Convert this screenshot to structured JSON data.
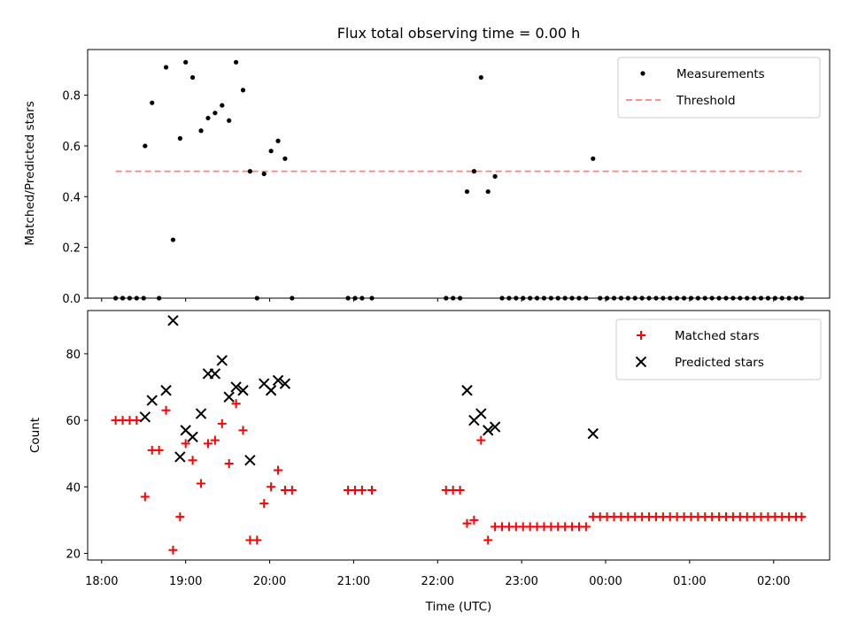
{
  "title": "Flux total observing time = 0.00 h",
  "chart_data": [
    {
      "type": "scatter",
      "panel": "top",
      "ylabel": "Matched/Predicted stars",
      "ylim": [
        0,
        0.98
      ],
      "yticks": [
        0,
        0.2,
        0.4,
        0.6,
        0.8
      ],
      "ytick_labels": [
        "0.0",
        "0.2",
        "0.4",
        "0.6",
        "0.8"
      ],
      "legend_placement": "upper right",
      "threshold": {
        "name": "Threshold",
        "value": 0.5,
        "x_range": [
          "18:10",
          "02:20"
        ],
        "color": "#ff8080"
      },
      "series": [
        {
          "name": "Measurements",
          "color": "#000000",
          "marker": "dot",
          "points": [
            [
              "18:10",
              0
            ],
            [
              "18:15",
              0
            ],
            [
              "18:20",
              0
            ],
            [
              "18:25",
              0
            ],
            [
              "18:30",
              0
            ],
            [
              "18:31",
              0.6
            ],
            [
              "18:36",
              0.77
            ],
            [
              "18:41",
              0
            ],
            [
              "18:46",
              0.91
            ],
            [
              "18:51",
              0.23
            ],
            [
              "18:56",
              0.63
            ],
            [
              "19:00",
              0.93
            ],
            [
              "19:05",
              0.87
            ],
            [
              "19:11",
              0.66
            ],
            [
              "19:16",
              0.71
            ],
            [
              "19:21",
              0.73
            ],
            [
              "19:26",
              0.76
            ],
            [
              "19:31",
              0.7
            ],
            [
              "19:36",
              0.93
            ],
            [
              "19:41",
              0.82
            ],
            [
              "19:46",
              0.5
            ],
            [
              "19:51",
              0
            ],
            [
              "19:56",
              0.49
            ],
            [
              "20:01",
              0.58
            ],
            [
              "20:06",
              0.62
            ],
            [
              "20:11",
              0.55
            ],
            [
              "20:16",
              0
            ],
            [
              "20:56",
              0
            ],
            [
              "21:01",
              0
            ],
            [
              "21:06",
              0
            ],
            [
              "21:13",
              0
            ],
            [
              "22:06",
              0
            ],
            [
              "22:11",
              0
            ],
            [
              "22:16",
              0
            ],
            [
              "22:21",
              0.42
            ],
            [
              "22:26",
              0.5
            ],
            [
              "22:31",
              0.87
            ],
            [
              "22:36",
              0.42
            ],
            [
              "22:41",
              0.48
            ],
            [
              "22:46",
              0
            ],
            [
              "22:51",
              0
            ],
            [
              "22:56",
              0
            ],
            [
              "23:01",
              0
            ],
            [
              "23:06",
              0
            ],
            [
              "23:11",
              0
            ],
            [
              "23:16",
              0
            ],
            [
              "23:21",
              0
            ],
            [
              "23:26",
              0
            ],
            [
              "23:31",
              0
            ],
            [
              "23:36",
              0
            ],
            [
              "23:41",
              0
            ],
            [
              "23:46",
              0
            ],
            [
              "23:51",
              0.55
            ],
            [
              "23:56",
              0
            ],
            [
              "00:01",
              0
            ],
            [
              "00:06",
              0
            ],
            [
              "00:11",
              0
            ],
            [
              "00:16",
              0
            ],
            [
              "00:21",
              0
            ],
            [
              "00:26",
              0
            ],
            [
              "00:31",
              0
            ],
            [
              "00:36",
              0
            ],
            [
              "00:41",
              0
            ],
            [
              "00:46",
              0
            ],
            [
              "00:51",
              0
            ],
            [
              "00:56",
              0
            ],
            [
              "01:01",
              0
            ],
            [
              "01:06",
              0
            ],
            [
              "01:11",
              0
            ],
            [
              "01:16",
              0
            ],
            [
              "01:21",
              0
            ],
            [
              "01:26",
              0
            ],
            [
              "01:31",
              0
            ],
            [
              "01:36",
              0
            ],
            [
              "01:41",
              0
            ],
            [
              "01:46",
              0
            ],
            [
              "01:51",
              0
            ],
            [
              "01:56",
              0
            ],
            [
              "02:01",
              0
            ],
            [
              "02:06",
              0
            ],
            [
              "02:11",
              0
            ],
            [
              "02:16",
              0
            ],
            [
              "02:20",
              0
            ]
          ]
        }
      ]
    },
    {
      "type": "scatter",
      "panel": "bottom",
      "xlabel": "Time (UTC)",
      "ylabel": "Count",
      "ylim": [
        18,
        93
      ],
      "yticks": [
        20,
        40,
        60,
        80
      ],
      "ytick_labels": [
        "20",
        "40",
        "60",
        "80"
      ],
      "xlim": [
        "17:50",
        "02:40"
      ],
      "xticks": [
        "18:00",
        "19:00",
        "20:00",
        "21:00",
        "22:00",
        "23:00",
        "00:00",
        "01:00",
        "02:00"
      ],
      "legend_placement": "upper right",
      "series": [
        {
          "name": "Matched stars",
          "color": "#ff0000",
          "marker": "plus",
          "points": [
            [
              "18:10",
              60
            ],
            [
              "18:15",
              60
            ],
            [
              "18:20",
              60
            ],
            [
              "18:25",
              60
            ],
            [
              "18:31",
              37
            ],
            [
              "18:36",
              51
            ],
            [
              "18:41",
              51
            ],
            [
              "18:46",
              63
            ],
            [
              "18:51",
              21
            ],
            [
              "18:56",
              31
            ],
            [
              "19:00",
              53
            ],
            [
              "19:05",
              48
            ],
            [
              "19:11",
              41
            ],
            [
              "19:16",
              53
            ],
            [
              "19:21",
              54
            ],
            [
              "19:26",
              59
            ],
            [
              "19:31",
              47
            ],
            [
              "19:36",
              65
            ],
            [
              "19:41",
              57
            ],
            [
              "19:46",
              24
            ],
            [
              "19:51",
              24
            ],
            [
              "19:56",
              35
            ],
            [
              "20:01",
              40
            ],
            [
              "20:06",
              45
            ],
            [
              "20:11",
              39
            ],
            [
              "20:16",
              39
            ],
            [
              "20:56",
              39
            ],
            [
              "21:01",
              39
            ],
            [
              "21:06",
              39
            ],
            [
              "21:13",
              39
            ],
            [
              "22:06",
              39
            ],
            [
              "22:11",
              39
            ],
            [
              "22:16",
              39
            ],
            [
              "22:21",
              29
            ],
            [
              "22:26",
              30
            ],
            [
              "22:31",
              54
            ],
            [
              "22:36",
              24
            ],
            [
              "22:41",
              28
            ],
            [
              "22:46",
              28
            ],
            [
              "22:51",
              28
            ],
            [
              "22:56",
              28
            ],
            [
              "23:01",
              28
            ],
            [
              "23:06",
              28
            ],
            [
              "23:11",
              28
            ],
            [
              "23:16",
              28
            ],
            [
              "23:21",
              28
            ],
            [
              "23:26",
              28
            ],
            [
              "23:31",
              28
            ],
            [
              "23:36",
              28
            ],
            [
              "23:41",
              28
            ],
            [
              "23:46",
              28
            ],
            [
              "23:51",
              31
            ],
            [
              "23:56",
              31
            ],
            [
              "00:01",
              31
            ],
            [
              "00:06",
              31
            ],
            [
              "00:11",
              31
            ],
            [
              "00:16",
              31
            ],
            [
              "00:21",
              31
            ],
            [
              "00:26",
              31
            ],
            [
              "00:31",
              31
            ],
            [
              "00:36",
              31
            ],
            [
              "00:41",
              31
            ],
            [
              "00:46",
              31
            ],
            [
              "00:51",
              31
            ],
            [
              "00:56",
              31
            ],
            [
              "01:01",
              31
            ],
            [
              "01:06",
              31
            ],
            [
              "01:11",
              31
            ],
            [
              "01:16",
              31
            ],
            [
              "01:21",
              31
            ],
            [
              "01:26",
              31
            ],
            [
              "01:31",
              31
            ],
            [
              "01:36",
              31
            ],
            [
              "01:41",
              31
            ],
            [
              "01:46",
              31
            ],
            [
              "01:51",
              31
            ],
            [
              "01:56",
              31
            ],
            [
              "02:01",
              31
            ],
            [
              "02:06",
              31
            ],
            [
              "02:11",
              31
            ],
            [
              "02:16",
              31
            ],
            [
              "02:20",
              31
            ]
          ]
        },
        {
          "name": "Predicted stars",
          "color": "#000000",
          "marker": "x",
          "points": [
            [
              "18:31",
              61
            ],
            [
              "18:36",
              66
            ],
            [
              "18:46",
              69
            ],
            [
              "18:51",
              90
            ],
            [
              "18:56",
              49
            ],
            [
              "19:00",
              57
            ],
            [
              "19:05",
              55
            ],
            [
              "19:11",
              62
            ],
            [
              "19:16",
              74
            ],
            [
              "19:21",
              74
            ],
            [
              "19:26",
              78
            ],
            [
              "19:31",
              67
            ],
            [
              "19:36",
              70
            ],
            [
              "19:41",
              69
            ],
            [
              "19:46",
              48
            ],
            [
              "19:56",
              71
            ],
            [
              "20:01",
              69
            ],
            [
              "20:06",
              72
            ],
            [
              "20:11",
              71
            ],
            [
              "22:21",
              69
            ],
            [
              "22:26",
              60
            ],
            [
              "22:31",
              62
            ],
            [
              "22:36",
              57
            ],
            [
              "22:41",
              58
            ],
            [
              "23:51",
              56
            ]
          ]
        }
      ]
    }
  ]
}
